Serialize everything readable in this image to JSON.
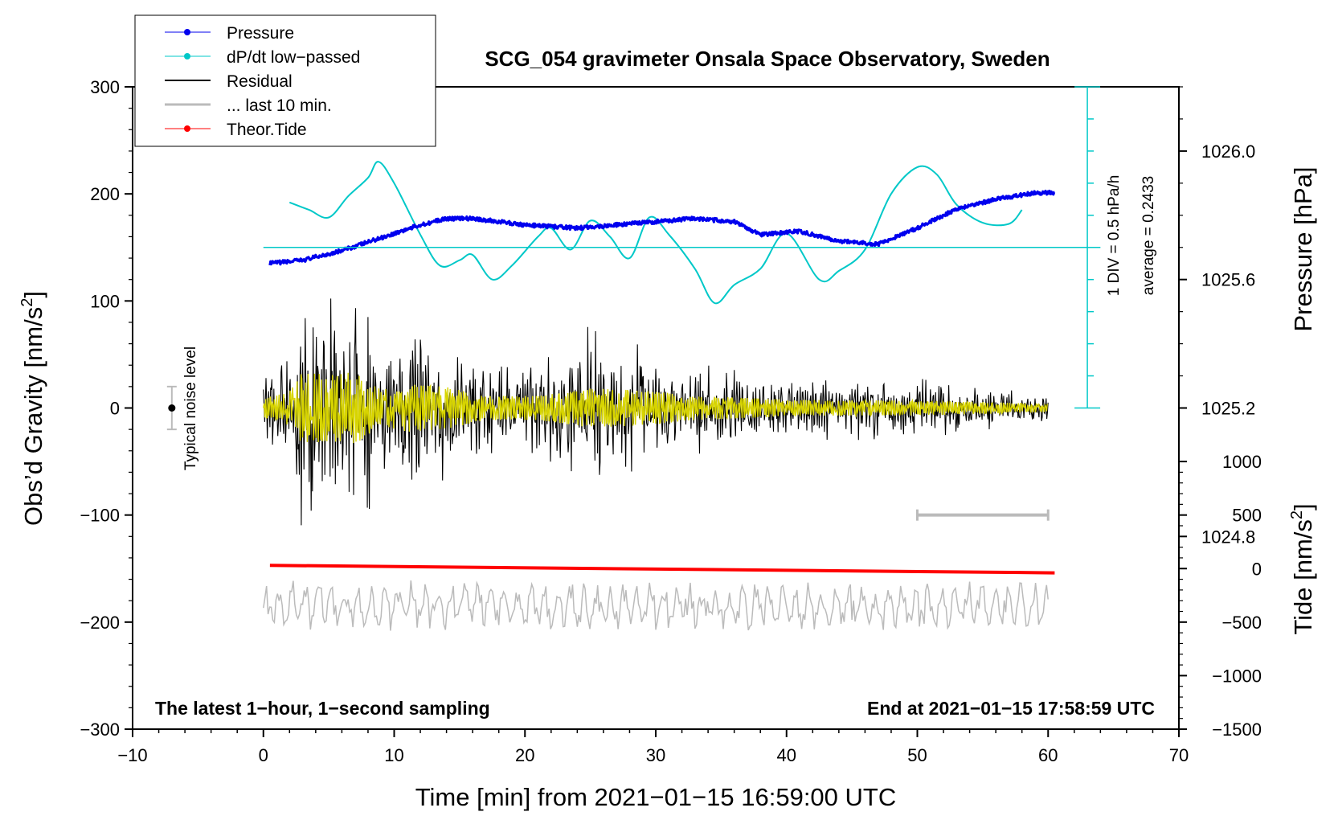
{
  "chart_data": {
    "type": "line",
    "title": "SCG_054 gravimeter Onsala Space Observatory, Sweden",
    "xlabel": "Time [min] from 2021−01−15 16:59:00 UTC",
    "ylabel_left": "Obs’d Gravity [nm/s²]",
    "ylabel_left_base": "Obs’d Gravity [nm/s",
    "ylabel_left_sup": "2",
    "ylabel_left_end": "]",
    "ylabel_right_top": "Pressure [hPa]",
    "ylabel_right_bottom": "Tide [nm/s²]",
    "ylabel_right_bottom_base": "Tide [nm/s",
    "ylabel_right_bottom_sup": "2",
    "ylabel_right_bottom_end": "]",
    "xlim": [
      -10,
      70
    ],
    "ylim": [
      -300,
      300
    ],
    "x_ticks": [
      -10,
      0,
      10,
      20,
      30,
      40,
      50,
      60,
      70
    ],
    "x_tick_labels": [
      "−10",
      "0",
      "10",
      "20",
      "30",
      "40",
      "50",
      "60",
      "70"
    ],
    "y_ticks": [
      300,
      200,
      100,
      0,
      -100,
      -200,
      -300
    ],
    "y_tick_labels": [
      "300",
      "200",
      "100",
      "0",
      "−100",
      "−200",
      "−300"
    ],
    "pressure_axis": {
      "ticks": [
        1026.0,
        1025.6,
        1025.2,
        1024.8
      ],
      "labels": [
        "1026.0",
        "1025.6",
        "1025.2",
        "1024.8"
      ],
      "gravity_at_1026": 240,
      "gravity_per_hpa": 300
    },
    "tide_axis": {
      "ticks": [
        1000,
        500,
        0,
        -500,
        -1000,
        -1500
      ],
      "labels": [
        "1000",
        "500",
        "0",
        "−500",
        "−1000",
        "−1500"
      ],
      "gravity_at_0": -150,
      "gravity_per_unit": 0.1
    },
    "legend": {
      "position": "top-left",
      "entries": [
        {
          "label": "Pressure",
          "color": "#0000ee",
          "marker": true
        },
        {
          "label": "dP/dt low−passed",
          "color": "#00c8c8",
          "marker": true
        },
        {
          "label": "Residual",
          "color": "#000000",
          "marker": false
        },
        {
          "label": "... last 10 min.",
          "color": "#bbbbbb",
          "marker": false
        },
        {
          "label": "Theor.Tide",
          "color": "#ff0000",
          "marker": true
        }
      ]
    },
    "annotations": {
      "bottom_left": "The latest 1−hour, 1−second sampling",
      "bottom_right": "End at 2021−01−15 17:58:59 UTC",
      "noise_label": "Typical noise level",
      "div_label": "1 DIV = 0.5 hPa/h",
      "average_label": "average = 0.2433"
    },
    "noise_bar": {
      "x": -7,
      "y": 0,
      "low": -20,
      "high": 20
    },
    "scale_bar": {
      "x0": 50,
      "x1": 60,
      "y": -100
    },
    "dpdt_scale": {
      "x": 63,
      "y_bottom": 0,
      "y_top": 300,
      "baseline_y": 150,
      "baseline_x0": 0,
      "baseline_x1": 64
    },
    "series": [
      {
        "name": "Pressure",
        "color": "#0000ee",
        "unit": "hPa",
        "x": [
          0.5,
          3,
          6,
          9,
          12,
          14,
          16,
          20,
          24,
          27,
          30,
          33,
          36,
          38,
          41,
          44,
          47,
          50,
          53,
          56,
          59,
          60.5
        ],
        "y": [
          1025.65,
          1025.66,
          1025.69,
          1025.73,
          1025.77,
          1025.79,
          1025.79,
          1025.77,
          1025.76,
          1025.77,
          1025.78,
          1025.79,
          1025.78,
          1025.74,
          1025.75,
          1025.72,
          1025.71,
          1025.76,
          1025.82,
          1025.85,
          1025.87,
          1025.87
        ]
      },
      {
        "name": "dP/dt low−passed",
        "color": "#00c8c8",
        "unit": "nm/s²",
        "x": [
          2,
          3.5,
          5,
          6.5,
          8,
          8.8,
          10,
          12,
          13.5,
          15,
          16,
          17.5,
          19,
          21,
          22,
          23.5,
          25,
          26.5,
          28,
          29.5,
          31,
          33,
          34.5,
          36,
          38,
          40,
          42.5,
          44,
          46,
          48,
          50,
          51.5,
          53,
          55,
          57,
          58
        ],
        "y": [
          192,
          185,
          178,
          198,
          215,
          230,
          210,
          162,
          133,
          138,
          143,
          120,
          133,
          160,
          168,
          148,
          175,
          160,
          140,
          178,
          162,
          130,
          98,
          115,
          130,
          163,
          120,
          128,
          148,
          200,
          225,
          218,
          190,
          173,
          172,
          185
        ]
      },
      {
        "name": "Residual",
        "color": "#000000",
        "unit": "nm/s²",
        "x": [
          0,
          60
        ],
        "envelope": [
          [
            0,
            30
          ],
          [
            2,
            60
          ],
          [
            3,
            120
          ],
          [
            5,
            110
          ],
          [
            7,
            120
          ],
          [
            9,
            60
          ],
          [
            11,
            80
          ],
          [
            14,
            70
          ],
          [
            17,
            40
          ],
          [
            21,
            40
          ],
          [
            25,
            65
          ],
          [
            28,
            60
          ],
          [
            30,
            55
          ],
          [
            33,
            40
          ],
          [
            40,
            28
          ],
          [
            45,
            25
          ],
          [
            50,
            25
          ],
          [
            55,
            20
          ],
          [
            60,
            14
          ]
        ]
      },
      {
        "name": "... last 10 min.",
        "color": "#bbbbbb",
        "unit": "nm/s²",
        "x": [
          0,
          60
        ],
        "y_center": -185,
        "amplitude": 20
      },
      {
        "name": "Theor.Tide",
        "color": "#ff0000",
        "unit": "nm/s²",
        "x": [
          0.5,
          60.5
        ],
        "y": [
          -147,
          -154
        ]
      }
    ]
  }
}
